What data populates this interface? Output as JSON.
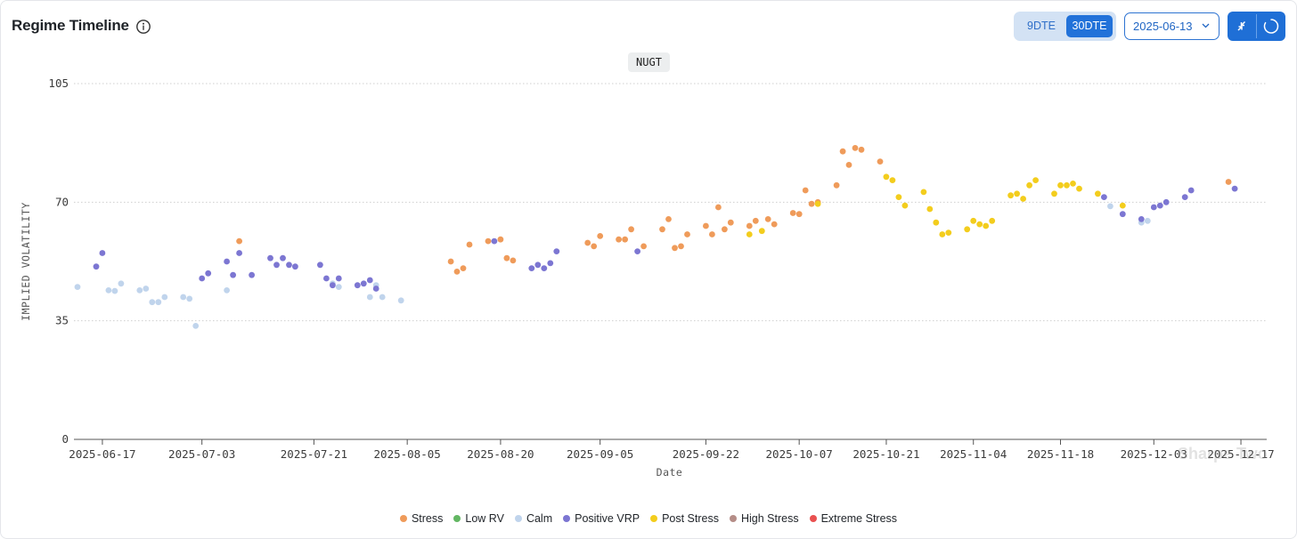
{
  "header": {
    "title": "Regime Timeline",
    "dte_options": [
      "9DTE",
      "30DTE"
    ],
    "dte_selected": "30DTE",
    "date_value": "2025-06-13"
  },
  "ticker": "NUGT",
  "watermark": "Sharpe Two",
  "colors": {
    "Stress": "#ef9b5a",
    "Low RV": "#63b763",
    "Calm": "#c0d4ec",
    "Positive VRP": "#7c76d2",
    "Post Stress": "#f3cd1d",
    "High Stress": "#b58d87",
    "Extreme Stress": "#e95150"
  },
  "chart_data": {
    "type": "scatter",
    "xlabel": "Date",
    "ylabel": "IMPLIED VOLATILITY",
    "ylim": [
      0,
      105
    ],
    "yticks": [
      0,
      35,
      70,
      105
    ],
    "xlim": [
      "2025-06-13",
      "2025-12-20"
    ],
    "xticks": [
      "2025-06-17",
      "2025-07-03",
      "2025-07-21",
      "2025-08-05",
      "2025-08-20",
      "2025-09-05",
      "2025-09-22",
      "2025-10-07",
      "2025-10-21",
      "2025-11-04",
      "2025-11-18",
      "2025-12-03",
      "2025-12-17"
    ],
    "grid": true,
    "legend_position": "bottom",
    "series": [
      {
        "name": "Stress",
        "points": [
          [
            "2025-07-09",
            58.5
          ],
          [
            "2025-08-12",
            52.5
          ],
          [
            "2025-08-13",
            49.5
          ],
          [
            "2025-08-14",
            50.5
          ],
          [
            "2025-08-15",
            57.5
          ],
          [
            "2025-08-18",
            58.5
          ],
          [
            "2025-08-20",
            59.0
          ],
          [
            "2025-08-21",
            53.5
          ],
          [
            "2025-08-22",
            52.8
          ],
          [
            "2025-09-03",
            58.0
          ],
          [
            "2025-09-04",
            57.0
          ],
          [
            "2025-09-05",
            60.0
          ],
          [
            "2025-09-08",
            59.0
          ],
          [
            "2025-09-09",
            59.0
          ],
          [
            "2025-09-10",
            62.0
          ],
          [
            "2025-09-12",
            57.0
          ],
          [
            "2025-09-15",
            62.0
          ],
          [
            "2025-09-16",
            65.0
          ],
          [
            "2025-09-17",
            56.5
          ],
          [
            "2025-09-18",
            57.0
          ],
          [
            "2025-09-19",
            60.5
          ],
          [
            "2025-09-22",
            63.0
          ],
          [
            "2025-09-23",
            60.5
          ],
          [
            "2025-09-24",
            68.5
          ],
          [
            "2025-09-25",
            62.0
          ],
          [
            "2025-09-26",
            64.0
          ],
          [
            "2025-09-29",
            63.0
          ],
          [
            "2025-09-30",
            64.5
          ],
          [
            "2025-10-02",
            65.0
          ],
          [
            "2025-10-03",
            63.5
          ],
          [
            "2025-10-06",
            66.8
          ],
          [
            "2025-10-07",
            66.5
          ],
          [
            "2025-10-08",
            73.5
          ],
          [
            "2025-10-09",
            69.5
          ],
          [
            "2025-10-10",
            70.0
          ],
          [
            "2025-10-13",
            75.0
          ],
          [
            "2025-10-14",
            85.0
          ],
          [
            "2025-10-15",
            81.0
          ],
          [
            "2025-10-16",
            86.0
          ],
          [
            "2025-10-17",
            85.5
          ],
          [
            "2025-10-20",
            82.0
          ],
          [
            "2025-12-15",
            76.0
          ]
        ]
      },
      {
        "name": "Low RV",
        "points": []
      },
      {
        "name": "Calm",
        "points": [
          [
            "2025-06-13",
            45.0
          ],
          [
            "2025-06-18",
            44.0
          ],
          [
            "2025-06-19",
            43.8
          ],
          [
            "2025-06-20",
            46.0
          ],
          [
            "2025-06-23",
            44.0
          ],
          [
            "2025-06-24",
            44.5
          ],
          [
            "2025-06-25",
            40.5
          ],
          [
            "2025-06-26",
            40.5
          ],
          [
            "2025-06-27",
            42.0
          ],
          [
            "2025-06-30",
            42.0
          ],
          [
            "2025-07-01",
            41.5
          ],
          [
            "2025-07-02",
            33.5
          ],
          [
            "2025-07-07",
            44.0
          ],
          [
            "2025-07-24",
            46.0
          ],
          [
            "2025-07-25",
            45.0
          ],
          [
            "2025-07-30",
            42.0
          ],
          [
            "2025-07-31",
            45.5
          ],
          [
            "2025-08-01",
            42.0
          ],
          [
            "2025-08-04",
            41.0
          ],
          [
            "2025-11-26",
            68.8
          ],
          [
            "2025-12-01",
            64.0
          ],
          [
            "2025-12-02",
            64.5
          ]
        ]
      },
      {
        "name": "Positive VRP",
        "points": [
          [
            "2025-06-16",
            51.0
          ],
          [
            "2025-06-17",
            55.0
          ],
          [
            "2025-07-03",
            47.5
          ],
          [
            "2025-07-04",
            49.0
          ],
          [
            "2025-07-07",
            52.5
          ],
          [
            "2025-07-08",
            48.5
          ],
          [
            "2025-07-09",
            55.0
          ],
          [
            "2025-07-11",
            48.5
          ],
          [
            "2025-07-14",
            53.5
          ],
          [
            "2025-07-15",
            51.5
          ],
          [
            "2025-07-16",
            53.5
          ],
          [
            "2025-07-17",
            51.5
          ],
          [
            "2025-07-18",
            51.0
          ],
          [
            "2025-07-22",
            51.5
          ],
          [
            "2025-07-23",
            47.5
          ],
          [
            "2025-07-24",
            45.5
          ],
          [
            "2025-07-25",
            47.5
          ],
          [
            "2025-07-28",
            45.5
          ],
          [
            "2025-07-29",
            46.0
          ],
          [
            "2025-07-30",
            47.0
          ],
          [
            "2025-07-31",
            44.5
          ],
          [
            "2025-08-19",
            58.5
          ],
          [
            "2025-08-25",
            50.5
          ],
          [
            "2025-08-26",
            51.5
          ],
          [
            "2025-08-27",
            50.5
          ],
          [
            "2025-08-28",
            52.0
          ],
          [
            "2025-08-29",
            55.5
          ],
          [
            "2025-09-11",
            55.5
          ],
          [
            "2025-11-25",
            71.5
          ],
          [
            "2025-11-28",
            66.5
          ],
          [
            "2025-12-01",
            65.0
          ],
          [
            "2025-12-03",
            68.5
          ],
          [
            "2025-12-04",
            69.0
          ],
          [
            "2025-12-05",
            70.0
          ],
          [
            "2025-12-08",
            71.5
          ],
          [
            "2025-12-09",
            73.5
          ],
          [
            "2025-12-16",
            74.0
          ]
        ]
      },
      {
        "name": "Post Stress",
        "points": [
          [
            "2025-09-29",
            60.5
          ],
          [
            "2025-10-01",
            61.5
          ],
          [
            "2025-10-10",
            69.5
          ],
          [
            "2025-10-21",
            77.5
          ],
          [
            "2025-10-22",
            76.5
          ],
          [
            "2025-10-23",
            71.5
          ],
          [
            "2025-10-24",
            69.0
          ],
          [
            "2025-10-27",
            73.0
          ],
          [
            "2025-10-28",
            68.0
          ],
          [
            "2025-10-29",
            64.0
          ],
          [
            "2025-10-30",
            60.5
          ],
          [
            "2025-10-31",
            61.0
          ],
          [
            "2025-11-03",
            62.0
          ],
          [
            "2025-11-04",
            64.5
          ],
          [
            "2025-11-05",
            63.5
          ],
          [
            "2025-11-06",
            63.0
          ],
          [
            "2025-11-07",
            64.5
          ],
          [
            "2025-11-10",
            72.0
          ],
          [
            "2025-11-11",
            72.5
          ],
          [
            "2025-11-12",
            71.0
          ],
          [
            "2025-11-13",
            75.0
          ],
          [
            "2025-11-14",
            76.5
          ],
          [
            "2025-11-17",
            72.5
          ],
          [
            "2025-11-18",
            75.0
          ],
          [
            "2025-11-19",
            75.0
          ],
          [
            "2025-11-20",
            75.5
          ],
          [
            "2025-11-21",
            74.0
          ],
          [
            "2025-11-24",
            72.5
          ],
          [
            "2025-11-28",
            69.0
          ]
        ]
      },
      {
        "name": "High Stress",
        "points": []
      },
      {
        "name": "Extreme Stress",
        "points": []
      }
    ]
  }
}
